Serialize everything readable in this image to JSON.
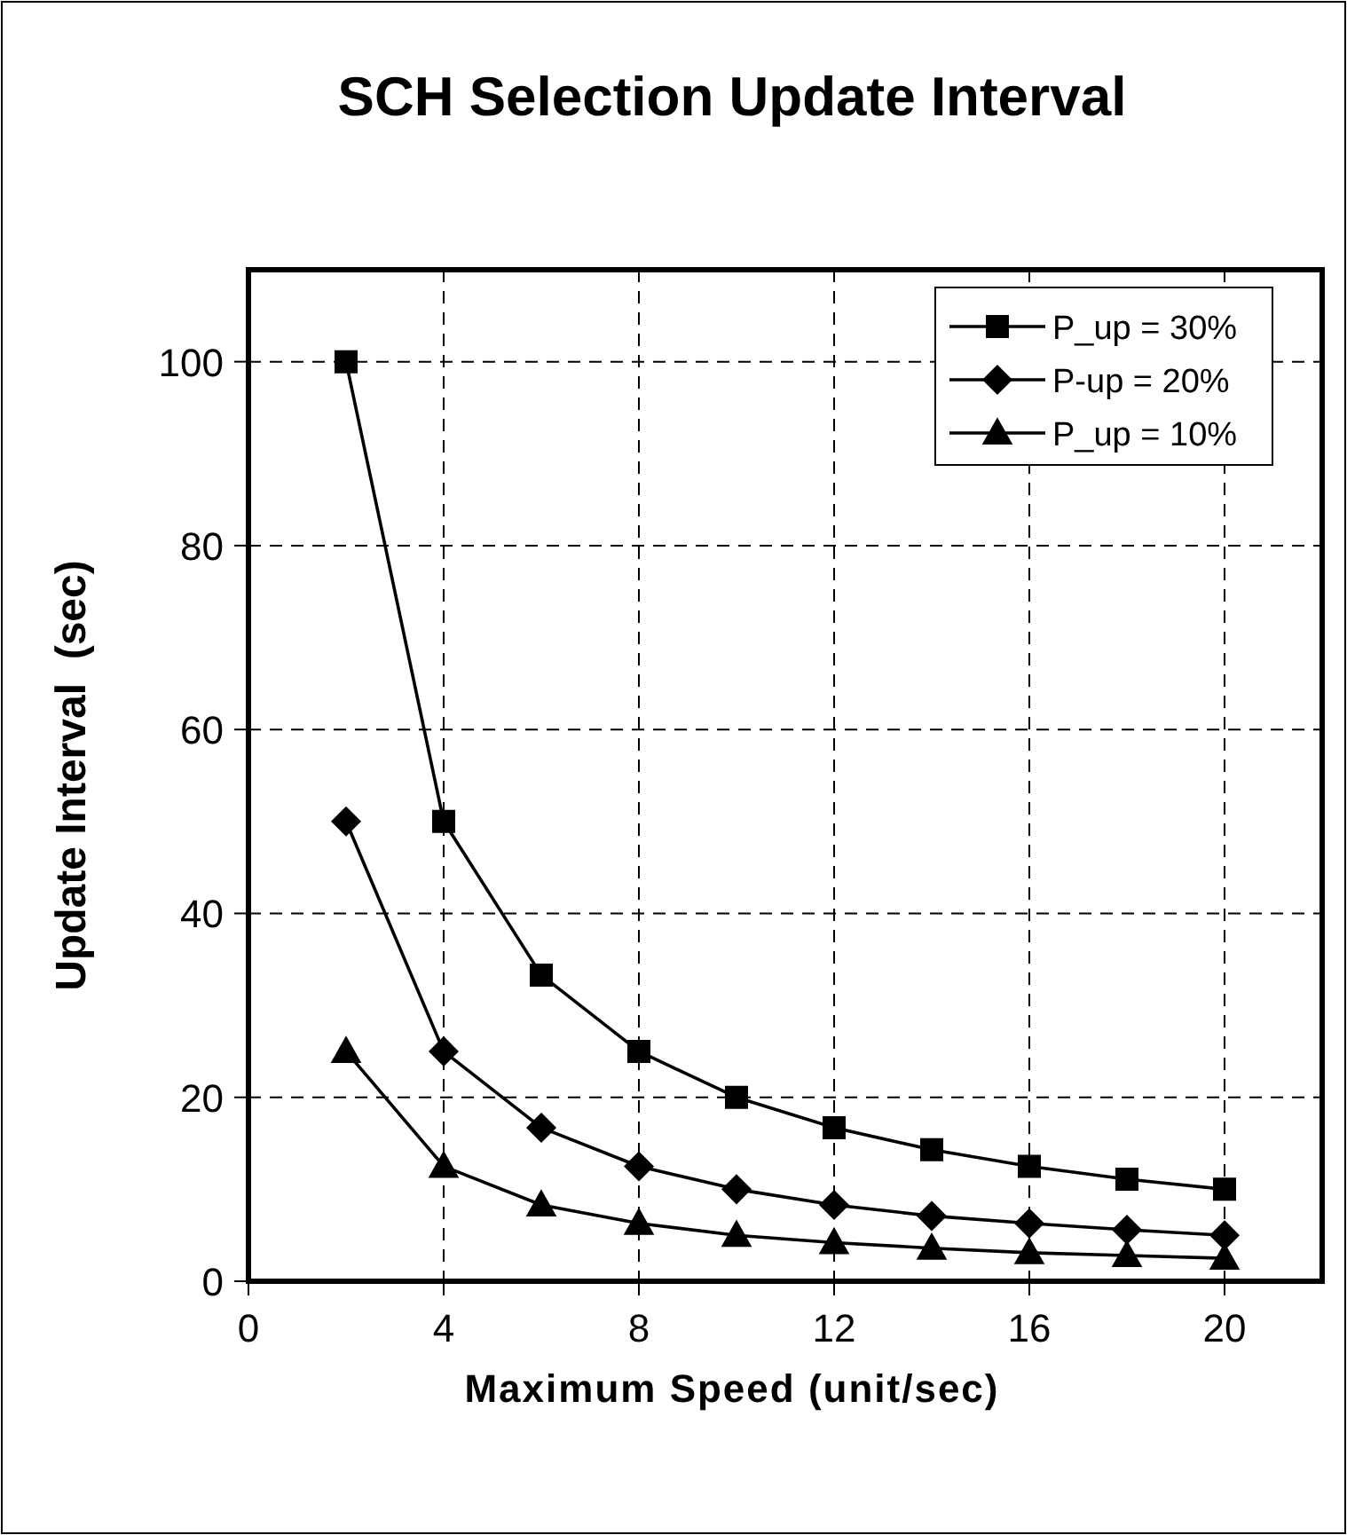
{
  "chart_data": {
    "type": "line",
    "title": "SCH Selection Update Interval",
    "xlabel": "Maximum Speed (unit/sec)",
    "ylabel": "Update Interval  (sec)",
    "x": [
      2,
      4,
      6,
      8,
      10,
      12,
      14,
      16,
      18,
      20
    ],
    "series": [
      {
        "name": "P_up = 30%",
        "color": "#000000",
        "marker": "square",
        "values": [
          100,
          50,
          33.3,
          25,
          20,
          16.7,
          14.3,
          12.5,
          11.1,
          10
        ]
      },
      {
        "name": "P-up = 20%",
        "color": "#000000",
        "marker": "diamond",
        "values": [
          50,
          25,
          16.7,
          12.5,
          10,
          8.3,
          7.1,
          6.3,
          5.6,
          5
        ]
      },
      {
        "name": "P_up = 10%",
        "color": "#000000",
        "marker": "triangle",
        "values": [
          25,
          12.5,
          8.3,
          6.3,
          5,
          4.2,
          3.6,
          3.1,
          2.8,
          2.5
        ]
      }
    ],
    "xlim": [
      0,
      22
    ],
    "xticks": [
      0,
      4,
      8,
      12,
      16,
      20
    ],
    "ylim": [
      0,
      110
    ],
    "yticks": [
      0,
      20,
      40,
      60,
      80,
      100
    ],
    "grid": true,
    "legend": "top right",
    "line_style": "solid"
  }
}
